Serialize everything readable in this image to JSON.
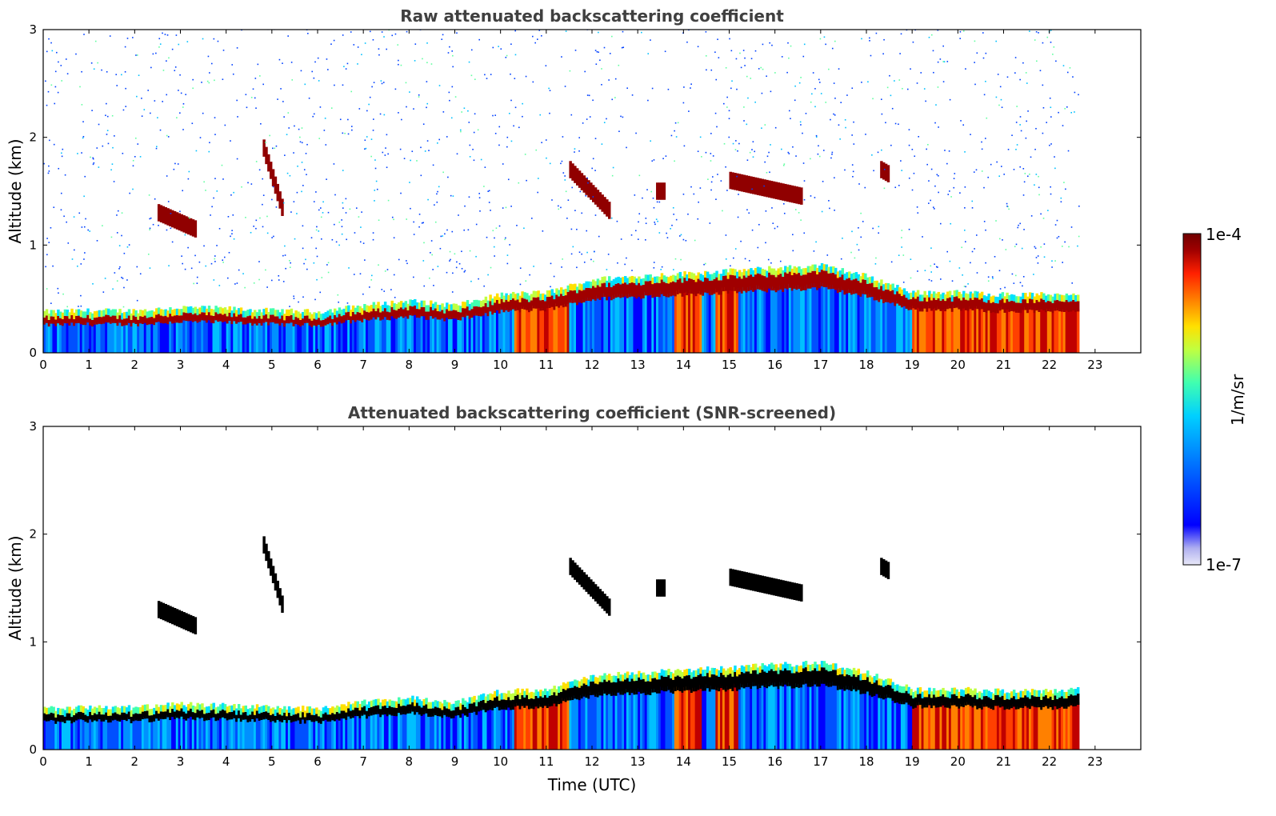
{
  "chart_data": [
    {
      "type": "heatmap",
      "title": "Raw attenuated backscattering coefficient",
      "xlabel": "",
      "ylabel": "Altitude (km)",
      "xlim": [
        0,
        24
      ],
      "ylim": [
        0,
        3
      ],
      "xticks": [
        "0",
        "1",
        "2",
        "3",
        "4",
        "5",
        "6",
        "7",
        "8",
        "9",
        "10",
        "11",
        "12",
        "13",
        "14",
        "15",
        "16",
        "17",
        "18",
        "19",
        "20",
        "21",
        "22",
        "23"
      ],
      "yticks": [
        "0",
        "1",
        "2",
        "3"
      ],
      "data_end_hour": 22.65,
      "boundary_layer_top_km": [
        {
          "t": 0,
          "z": 0.32
        },
        {
          "t": 1,
          "z": 0.33
        },
        {
          "t": 2,
          "z": 0.33
        },
        {
          "t": 3,
          "z": 0.36
        },
        {
          "t": 4,
          "z": 0.35
        },
        {
          "t": 5,
          "z": 0.33
        },
        {
          "t": 6,
          "z": 0.32
        },
        {
          "t": 7,
          "z": 0.38
        },
        {
          "t": 8,
          "z": 0.42
        },
        {
          "t": 9,
          "z": 0.38
        },
        {
          "t": 10,
          "z": 0.48
        },
        {
          "t": 11,
          "z": 0.5
        },
        {
          "t": 12,
          "z": 0.62
        },
        {
          "t": 13,
          "z": 0.65
        },
        {
          "t": 17,
          "z": 0.75
        },
        {
          "t": 18,
          "z": 0.65
        },
        {
          "t": 19,
          "z": 0.5
        },
        {
          "t": 20,
          "z": 0.5
        },
        {
          "t": 21,
          "z": 0.48
        },
        {
          "t": 22,
          "z": 0.48
        },
        {
          "t": 22.65,
          "z": 0.5
        }
      ],
      "cloud_features_km": [
        {
          "t0": 11.5,
          "t1": 12.4,
          "z0": 1.7,
          "z1": 1.3
        },
        {
          "t0": 13.4,
          "t1": 13.6,
          "z0": 1.5,
          "z1": 1.5
        },
        {
          "t0": 15.0,
          "t1": 16.6,
          "z0": 1.6,
          "z1": 1.45
        },
        {
          "t0": 18.3,
          "t1": 18.5,
          "z0": 1.7,
          "z1": 1.65
        },
        {
          "t0": 4.8,
          "t1": 5.2,
          "z0": 1.9,
          "z1": 1.35
        },
        {
          "t0": 2.5,
          "t1": 3.3,
          "z0": 1.3,
          "z1": 1.15
        }
      ]
    },
    {
      "type": "heatmap",
      "title": "Attenuated backscattering coefficient (SNR-screened)",
      "xlabel": "Time (UTC)",
      "ylabel": "Altitude (km)",
      "xlim": [
        0,
        24
      ],
      "ylim": [
        0,
        3
      ],
      "xticks": [
        "0",
        "1",
        "2",
        "3",
        "4",
        "5",
        "6",
        "7",
        "8",
        "9",
        "10",
        "11",
        "12",
        "13",
        "14",
        "15",
        "16",
        "17",
        "18",
        "19",
        "20",
        "21",
        "22",
        "23"
      ],
      "yticks": [
        "0",
        "1",
        "2",
        "3"
      ],
      "data_end_hour": 22.65
    }
  ],
  "colorbar": {
    "label": "1/m/sr",
    "max_label": "1e-4",
    "min_label": "1e-7",
    "scale": "log",
    "range": [
      1e-07,
      0.0001
    ],
    "colormap": [
      "#e8e8f8",
      "#b0b0f0",
      "#0000ff",
      "#0070ff",
      "#00d0ff",
      "#40ffb0",
      "#c0ff40",
      "#ffe000",
      "#ff8000",
      "#ff2000",
      "#a00000",
      "#700000"
    ]
  },
  "screened_overlay_color": "#000000"
}
